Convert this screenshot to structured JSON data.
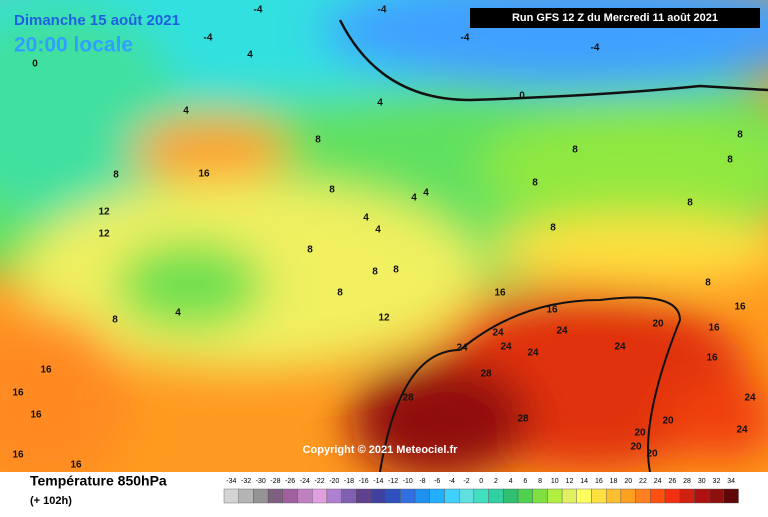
{
  "header": {
    "run": "Run GFS 12 Z du Mercredi 11 août 2021",
    "date": "Dimanche 15 août 2021",
    "time": "20:00 locale",
    "copyright": "Copyright © 2021 Meteociel.fr"
  },
  "footer": {
    "title": "Température 850hPa",
    "lead": "(+ 102h)"
  },
  "legend": {
    "ticks": [
      -34,
      -32,
      -30,
      -28,
      -26,
      -24,
      -22,
      -20,
      -18,
      -16,
      -14,
      -12,
      -10,
      -8,
      -6,
      -4,
      -2,
      0,
      2,
      4,
      6,
      8,
      10,
      12,
      14,
      16,
      18,
      20,
      22,
      24,
      26,
      28,
      30,
      32,
      34
    ],
    "colors": [
      "#d4d4d4",
      "#b4b4b4",
      "#949494",
      "#806080",
      "#a060a0",
      "#c080c0",
      "#e0a0e0",
      "#b080d0",
      "#8060b0",
      "#604090",
      "#4040a0",
      "#3050c0",
      "#3070e0",
      "#2090f0",
      "#20b0ff",
      "#40d0ff",
      "#60e0e0",
      "#40e0c0",
      "#30d0a0",
      "#30c070",
      "#50d050",
      "#80e040",
      "#b0f040",
      "#e0f060",
      "#ffff60",
      "#ffe040",
      "#ffc030",
      "#ffa020",
      "#ff8020",
      "#ff5010",
      "#f03010",
      "#d02010",
      "#b01010",
      "#901010",
      "#600808"
    ]
  },
  "contour_labels": [
    -4,
    -4,
    -4,
    -4,
    -4,
    0,
    0,
    4,
    4,
    4,
    4,
    4,
    4,
    4,
    4,
    8,
    8,
    8,
    8,
    8,
    8,
    8,
    8,
    8,
    8,
    8,
    8,
    8,
    8,
    8,
    12,
    12,
    12,
    16,
    16,
    16,
    16,
    16,
    16,
    16,
    16,
    16,
    16,
    16,
    20,
    20,
    20,
    20,
    20,
    24,
    24,
    24,
    24,
    24,
    24,
    24,
    24,
    28,
    28,
    28
  ]
}
